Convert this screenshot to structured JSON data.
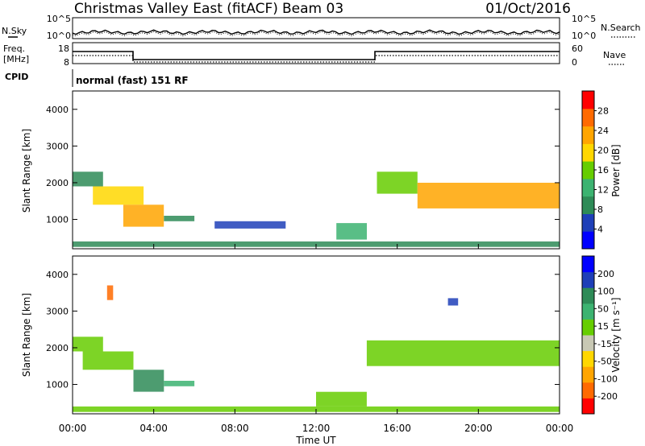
{
  "header": {
    "title": "Christmas Valley East (fitACF)",
    "beam": "Beam 03",
    "date": "01/Oct/2016"
  },
  "noise_panel": {
    "left_label": "N.Sky",
    "right_label": "N.Search",
    "left_ticks": [
      "10^5",
      "10^0"
    ],
    "right_ticks": [
      "10^5",
      "10^0"
    ]
  },
  "freq_panel": {
    "left_label_1": "Freq.",
    "left_label_2": "[MHz]",
    "right_label": "Nave",
    "left_ticks": [
      "18",
      "8"
    ],
    "right_ticks": [
      "60",
      "0"
    ]
  },
  "cpid": {
    "label": "CPID",
    "value": "normal (fast) 151 RF"
  },
  "colors": {
    "power_scale": [
      "#0000ff",
      "#1e3fb8",
      "#2e8b57",
      "#3cb371",
      "#66cd00",
      "#ffd700",
      "#ffa500",
      "#ff6a00",
      "#ff0000"
    ],
    "velocity_scale": [
      "#ff0000",
      "#ff6a00",
      "#ffa500",
      "#ffd700",
      "#c8c8b4",
      "#66cd00",
      "#3cb371",
      "#2e8b57",
      "#1e3fb8",
      "#0000ff"
    ]
  },
  "chart_data": [
    {
      "type": "heatmap",
      "title": "",
      "xlabel": "Time UT",
      "ylabel": "Slant Range [km]",
      "x_ticks": [
        "00:00",
        "04:00",
        "08:00",
        "12:00",
        "16:00",
        "20:00",
        "00:00"
      ],
      "y_ticks": [
        "1000",
        "2000",
        "3000",
        "4000"
      ],
      "ylim": [
        200,
        4500
      ],
      "colorbar": {
        "label": "Power [dB]",
        "ticks": [
          "28",
          "24",
          "20",
          "16",
          "12",
          "8",
          "4"
        ],
        "range": [
          0,
          32
        ]
      },
      "regions": [
        {
          "t": [
            0.0,
            1.5
          ],
          "r": [
            1900,
            2300
          ],
          "value": 10
        },
        {
          "t": [
            1.0,
            3.5
          ],
          "r": [
            1400,
            1900
          ],
          "value": 18
        },
        {
          "t": [
            2.5,
            4.5
          ],
          "r": [
            800,
            1400
          ],
          "value": 24
        },
        {
          "t": [
            4.5,
            6.0
          ],
          "r": [
            950,
            1100
          ],
          "value": 10
        },
        {
          "t": [
            7.0,
            10.5
          ],
          "r": [
            750,
            950
          ],
          "value": 6
        },
        {
          "t": [
            13.0,
            14.5
          ],
          "r": [
            450,
            900
          ],
          "value": 12
        },
        {
          "t": [
            15.0,
            17.0
          ],
          "r": [
            1700,
            2300
          ],
          "value": 16
        },
        {
          "t": [
            17.0,
            24.0
          ],
          "r": [
            1300,
            2000
          ],
          "value": 22
        },
        {
          "t": [
            0.0,
            24.0
          ],
          "r": [
            250,
            400
          ],
          "value": 10
        }
      ]
    },
    {
      "type": "heatmap",
      "title": "",
      "xlabel": "Time UT",
      "ylabel": "Slant Range [km]",
      "x_ticks": [
        "00:00",
        "04:00",
        "08:00",
        "12:00",
        "16:00",
        "20:00",
        "00:00"
      ],
      "y_ticks": [
        "1000",
        "2000",
        "3000",
        "4000"
      ],
      "ylim": [
        200,
        4500
      ],
      "colorbar": {
        "label": "Velocity [m s⁻¹]",
        "ticks": [
          "200",
          "100",
          "50",
          "15",
          "-15",
          "-50",
          "-100",
          "-200"
        ],
        "range": [
          -250,
          250
        ]
      },
      "regions": [
        {
          "t": [
            0.0,
            1.5
          ],
          "r": [
            1900,
            2300
          ],
          "value": 0
        },
        {
          "t": [
            0.5,
            3.0
          ],
          "r": [
            1400,
            1900
          ],
          "value": 40
        },
        {
          "t": [
            3.0,
            4.5
          ],
          "r": [
            800,
            1400
          ],
          "value": 120
        },
        {
          "t": [
            4.5,
            6.0
          ],
          "r": [
            950,
            1100
          ],
          "value": 60
        },
        {
          "t": [
            1.7,
            2.0
          ],
          "r": [
            3300,
            3700
          ],
          "value": -180
        },
        {
          "t": [
            18.5,
            19.0
          ],
          "r": [
            3150,
            3350
          ],
          "value": 180
        },
        {
          "t": [
            14.5,
            24.0
          ],
          "r": [
            1500,
            2200
          ],
          "value": 0
        },
        {
          "t": [
            12.0,
            14.5
          ],
          "r": [
            400,
            800
          ],
          "value": 0
        },
        {
          "t": [
            0.0,
            24.0
          ],
          "r": [
            250,
            400
          ],
          "value": 30
        }
      ]
    }
  ]
}
